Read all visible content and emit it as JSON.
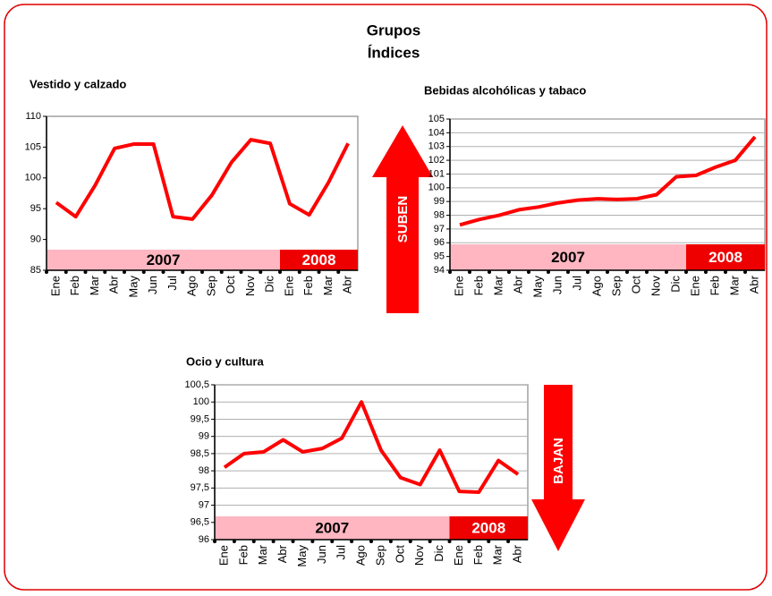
{
  "header": {
    "title": "Grupos",
    "subtitle": "Índices"
  },
  "arrows": {
    "up": "SUBEN",
    "down": "BAJAN"
  },
  "chart_data": [
    {
      "type": "line",
      "title": "Vestido y calzado",
      "categories": [
        "Ene",
        "Feb",
        "Mar",
        "Abr",
        "May",
        "Jun",
        "Jul",
        "Ago",
        "Sep",
        "Oct",
        "Nov",
        "Dic",
        "Ene",
        "Feb",
        "Mar",
        "Abr"
      ],
      "years": [
        "2007",
        "2008"
      ],
      "series": [
        {
          "name": "Vestido y calzado",
          "color": "#ff0000",
          "values": [
            96,
            93.7,
            98.8,
            104.8,
            105.5,
            105.5,
            93.7,
            93.3,
            97.2,
            102.5,
            106.2,
            105.6,
            95.8,
            94,
            99.3,
            105.6
          ]
        }
      ],
      "ylim": [
        85,
        110
      ],
      "yticks": [
        85,
        90,
        95,
        100,
        105,
        110
      ],
      "grid": false
    },
    {
      "type": "line",
      "title": "Bebidas alcohólicas y tabaco",
      "categories": [
        "Ene",
        "Feb",
        "Mar",
        "Abr",
        "May",
        "Jun",
        "Jul",
        "Ago",
        "Sep",
        "Oct",
        "Nov",
        "Dic",
        "Ene",
        "Feb",
        "Mar",
        "Abr"
      ],
      "years": [
        "2007",
        "2008"
      ],
      "series": [
        {
          "name": "Bebidas alcohólicas y tabaco",
          "color": "#ff0000",
          "values": [
            97.3,
            97.7,
            98.0,
            98.4,
            98.6,
            98.9,
            99.1,
            99.2,
            99.15,
            99.2,
            99.5,
            100.8,
            100.9,
            101.5,
            102.0,
            103.7
          ]
        }
      ],
      "ylim": [
        94,
        105
      ],
      "yticks": [
        94,
        95,
        96,
        97,
        98,
        99,
        100,
        101,
        102,
        103,
        104,
        105
      ],
      "grid": true
    },
    {
      "type": "line",
      "title": "Ocio y cultura",
      "categories": [
        "Ene",
        "Feb",
        "Mar",
        "Abr",
        "May",
        "Jun",
        "Jul",
        "Ago",
        "Sep",
        "Oct",
        "Nov",
        "Dic",
        "Ene",
        "Feb",
        "Mar",
        "Abr"
      ],
      "years": [
        "2007",
        "2008"
      ],
      "series": [
        {
          "name": "Ocio y cultura",
          "color": "#ff0000",
          "values": [
            98.1,
            98.5,
            98.55,
            98.9,
            98.55,
            98.65,
            98.95,
            100.0,
            98.6,
            97.8,
            97.6,
            98.6,
            97.4,
            97.38,
            98.3,
            97.9
          ]
        }
      ],
      "ylim": [
        96,
        100.5
      ],
      "yticks": [
        96,
        {
          "value": 96.5,
          "label": "96,5"
        },
        97,
        {
          "value": 97.5,
          "label": "97,5"
        },
        98,
        {
          "value": 98.5,
          "label": "98,5"
        },
        99,
        {
          "value": 99.5,
          "label": "99,5"
        },
        100,
        {
          "value": 100.5,
          "label": "100,5"
        }
      ],
      "grid": true
    }
  ]
}
